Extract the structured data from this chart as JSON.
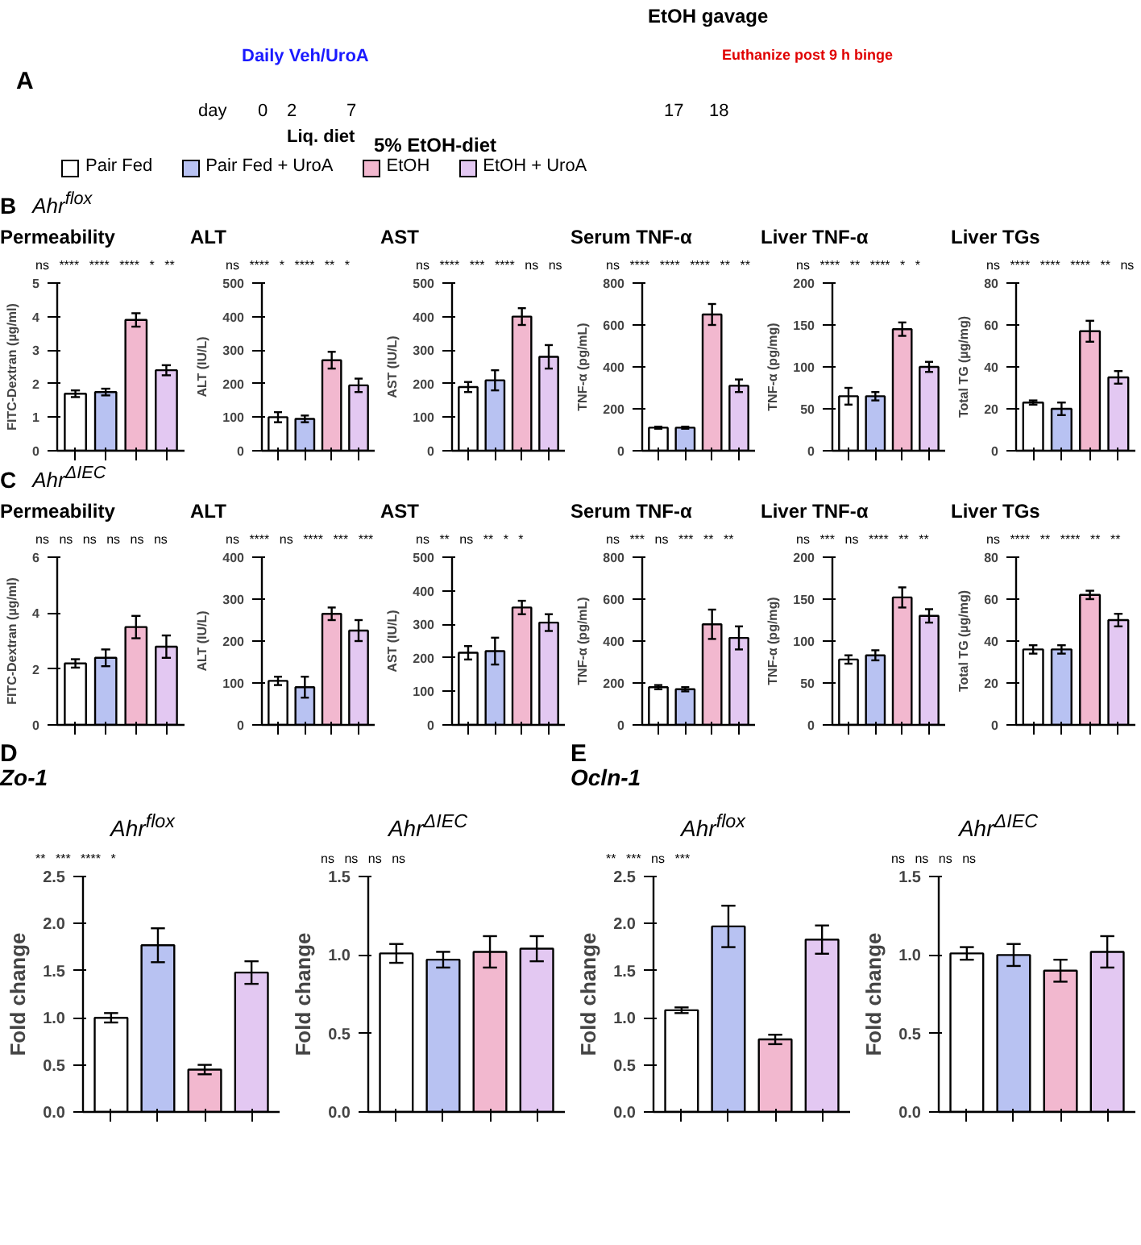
{
  "chart_data": [
    {
      "type": "other",
      "title": "A",
      "annotations": [
        "Daily Veh/UroA",
        "EtOH gavage",
        "Euthanize post 9 h binge",
        "day",
        "0",
        "2",
        "7",
        "17",
        "18",
        "Liq. diet",
        "5% EtOH-diet"
      ]
    },
    {
      "type": "other",
      "categories": [
        "Pair Fed",
        "Pair Fed + UroA",
        "EtOH",
        "EtOH + UroA"
      ],
      "colors": [
        "#ffffff",
        "#b8c2f2",
        "#f2b8cf",
        "#e3c8f2"
      ]
    },
    {
      "type": "other",
      "title": "B",
      "subtitle": "Ahr$^{flox}$"
    },
    {
      "type": "bar",
      "title": "Permeability",
      "ylabel": "FITC-Dextran (µg/ml)",
      "categories": [
        null,
        null,
        null,
        null
      ],
      "values": [
        1.7,
        1.75,
        3.9,
        2.4
      ],
      "errors": [
        0.1,
        0.1,
        0.2,
        0.15
      ],
      "colors": [
        "#ffffff",
        "#b8c2f2",
        "#f2b8cf",
        "#e3c8f2"
      ],
      "ylim": [
        0,
        5
      ],
      "yticks": [
        0,
        1,
        2,
        3,
        4,
        5
      ],
      "tick_labels": "y",
      "grid": false,
      "annotations": [
        "ns",
        "****",
        "****",
        "****",
        "*",
        "**"
      ]
    },
    {
      "type": "bar",
      "title": "ALT",
      "ylabel": "ALT (IU/L)",
      "categories": [
        null,
        null,
        null,
        null
      ],
      "values": [
        100,
        95,
        270,
        195
      ],
      "errors": [
        15,
        10,
        25,
        20
      ],
      "colors": [
        "#ffffff",
        "#b8c2f2",
        "#f2b8cf",
        "#e3c8f2"
      ],
      "ylim": [
        0,
        500
      ],
      "yticks": [
        0,
        100,
        200,
        300,
        400,
        500
      ],
      "tick_labels": "y",
      "grid": false,
      "annotations": [
        "ns",
        "****",
        "*",
        "****",
        "**",
        "*"
      ]
    },
    {
      "type": "bar",
      "title": "AST",
      "ylabel": "AST (IU/L)",
      "categories": [
        null,
        null,
        null,
        null
      ],
      "values": [
        190,
        210,
        400,
        280
      ],
      "errors": [
        15,
        30,
        25,
        35
      ],
      "colors": [
        "#ffffff",
        "#b8c2f2",
        "#f2b8cf",
        "#e3c8f2"
      ],
      "ylim": [
        0,
        500
      ],
      "yticks": [
        0,
        100,
        200,
        300,
        400,
        500
      ],
      "tick_labels": "y",
      "grid": false,
      "annotations": [
        "ns",
        "****",
        "***",
        "****",
        "ns",
        "ns"
      ]
    },
    {
      "type": "bar",
      "title": "Serum TNF-α",
      "ylabel": "TNF-α (pg/mL)",
      "categories": [
        null,
        null,
        null,
        null
      ],
      "values": [
        110,
        110,
        650,
        310
      ],
      "errors": [
        5,
        5,
        50,
        30
      ],
      "colors": [
        "#ffffff",
        "#b8c2f2",
        "#f2b8cf",
        "#e3c8f2"
      ],
      "ylim": [
        0,
        800
      ],
      "yticks": [
        0,
        200,
        400,
        600,
        800
      ],
      "tick_labels": "y",
      "grid": false,
      "annotations": [
        "ns",
        "****",
        "****",
        "****",
        "**",
        "**"
      ]
    },
    {
      "type": "bar",
      "title": "Liver TNF-α",
      "ylabel": "TNF-α (pg/mg)",
      "categories": [
        null,
        null,
        null,
        null
      ],
      "values": [
        65,
        65,
        145,
        100
      ],
      "errors": [
        10,
        5,
        8,
        6
      ],
      "colors": [
        "#ffffff",
        "#b8c2f2",
        "#f2b8cf",
        "#e3c8f2"
      ],
      "ylim": [
        0,
        200
      ],
      "yticks": [
        0,
        50,
        100,
        150,
        200
      ],
      "tick_labels": "y",
      "grid": false,
      "annotations": [
        "ns",
        "****",
        "**",
        "****",
        "*",
        "*"
      ]
    },
    {
      "type": "bar",
      "title": "Liver TGs",
      "ylabel": "Total TG (µg/mg)",
      "categories": [
        null,
        null,
        null,
        null
      ],
      "values": [
        23,
        20,
        57,
        35
      ],
      "errors": [
        1,
        3,
        5,
        3
      ],
      "colors": [
        "#ffffff",
        "#b8c2f2",
        "#f2b8cf",
        "#e3c8f2"
      ],
      "ylim": [
        0,
        80
      ],
      "yticks": [
        0,
        20,
        40,
        60,
        80
      ],
      "tick_labels": "y",
      "grid": false,
      "annotations": [
        "ns",
        "****",
        "****",
        "****",
        "**",
        "ns"
      ]
    },
    {
      "type": "other",
      "title": "C",
      "subtitle": "Ahr$^{ΔIEC}$"
    },
    {
      "type": "bar",
      "title": "Permeability",
      "ylabel": "FITC-Dextran (µg/ml)",
      "categories": [
        null,
        null,
        null,
        null
      ],
      "values": [
        2.2,
        2.4,
        3.5,
        2.8
      ],
      "errors": [
        0.15,
        0.3,
        0.4,
        0.4
      ],
      "colors": [
        "#ffffff",
        "#b8c2f2",
        "#f2b8cf",
        "#e3c8f2"
      ],
      "ylim": [
        0,
        6
      ],
      "yticks": [
        0,
        2,
        4,
        6
      ],
      "tick_labels": "y",
      "grid": false,
      "annotations": [
        "ns",
        "ns",
        "ns",
        "ns",
        "ns",
        "ns"
      ]
    },
    {
      "type": "bar",
      "title": "ALT",
      "ylabel": "ALT (IU/L)",
      "categories": [
        null,
        null,
        null,
        null
      ],
      "values": [
        105,
        90,
        265,
        225
      ],
      "errors": [
        10,
        25,
        15,
        25
      ],
      "colors": [
        "#ffffff",
        "#b8c2f2",
        "#f2b8cf",
        "#e3c8f2"
      ],
      "ylim": [
        0,
        400
      ],
      "yticks": [
        0,
        100,
        200,
        300,
        400
      ],
      "tick_labels": "y",
      "grid": false,
      "annotations": [
        "ns",
        "****",
        "ns",
        "****",
        "***",
        "***"
      ]
    },
    {
      "type": "bar",
      "title": "AST",
      "ylabel": "AST (IU/L)",
      "categories": [
        null,
        null,
        null,
        null
      ],
      "values": [
        215,
        220,
        350,
        305
      ],
      "errors": [
        20,
        40,
        20,
        25
      ],
      "colors": [
        "#ffffff",
        "#b8c2f2",
        "#f2b8cf",
        "#e3c8f2"
      ],
      "ylim": [
        0,
        500
      ],
      "yticks": [
        0,
        100,
        200,
        300,
        400,
        500
      ],
      "tick_labels": "y",
      "grid": false,
      "annotations": [
        "ns",
        "**",
        "ns",
        "**",
        "*",
        "*"
      ]
    },
    {
      "type": "bar",
      "title": "Serum TNF-α",
      "ylabel": "TNF-α (pg/mL)",
      "categories": [
        null,
        null,
        null,
        null
      ],
      "values": [
        180,
        170,
        480,
        415
      ],
      "errors": [
        10,
        10,
        70,
        55
      ],
      "colors": [
        "#ffffff",
        "#b8c2f2",
        "#f2b8cf",
        "#e3c8f2"
      ],
      "ylim": [
        0,
        800
      ],
      "yticks": [
        0,
        200,
        400,
        600,
        800
      ],
      "tick_labels": "y",
      "grid": false,
      "annotations": [
        "ns",
        "***",
        "ns",
        "***",
        "**",
        "**"
      ]
    },
    {
      "type": "bar",
      "title": "Liver TNF-α",
      "ylabel": "TNF-α (pg/mg)",
      "categories": [
        null,
        null,
        null,
        null
      ],
      "values": [
        78,
        83,
        152,
        130
      ],
      "errors": [
        5,
        6,
        12,
        8
      ],
      "colors": [
        "#ffffff",
        "#b8c2f2",
        "#f2b8cf",
        "#e3c8f2"
      ],
      "ylim": [
        0,
        200
      ],
      "yticks": [
        0,
        50,
        100,
        150,
        200
      ],
      "tick_labels": "y",
      "grid": false,
      "annotations": [
        "ns",
        "***",
        "ns",
        "****",
        "**",
        "**"
      ]
    },
    {
      "type": "bar",
      "title": "Liver TGs",
      "ylabel": "Total TG (µg/mg)",
      "categories": [
        null,
        null,
        null,
        null
      ],
      "values": [
        36,
        36,
        62,
        50
      ],
      "errors": [
        2,
        2,
        2,
        3
      ],
      "colors": [
        "#ffffff",
        "#b8c2f2",
        "#f2b8cf",
        "#e3c8f2"
      ],
      "ylim": [
        0,
        80
      ],
      "yticks": [
        0,
        20,
        40,
        60,
        80
      ],
      "tick_labels": "y",
      "grid": false,
      "annotations": [
        "ns",
        "****",
        "**",
        "****",
        "**",
        "**"
      ]
    },
    {
      "type": "other",
      "title": "D",
      "subtitle": "Zo-1"
    },
    {
      "type": "other",
      "title": "E",
      "subtitle": "Ocln-1"
    },
    {
      "type": "bar",
      "title": "Ahr$^{flox}$",
      "ylabel": "Fold change",
      "categories": [
        null,
        null,
        null,
        null
      ],
      "values": [
        1.0,
        1.77,
        0.45,
        1.48
      ],
      "errors": [
        0.05,
        0.18,
        0.05,
        0.12
      ],
      "colors": [
        "#ffffff",
        "#b8c2f2",
        "#f2b8cf",
        "#e3c8f2"
      ],
      "ylim": [
        0,
        2.5
      ],
      "yticks": [
        {
          "value": 0,
          "label": "0.0"
        },
        {
          "value": 0.5,
          "label": "0.5"
        },
        {
          "value": 1,
          "label": "1.0"
        },
        {
          "value": 1.5,
          "label": "1.5"
        },
        {
          "value": 2,
          "label": "2.0"
        },
        {
          "value": 2.5,
          "label": "2.5"
        }
      ],
      "tick_labels": "y",
      "grid": false,
      "annotations": [
        "**",
        "***",
        "****",
        "*"
      ]
    },
    {
      "type": "bar",
      "title": "Ahr$^{ΔIEC}$",
      "ylabel": "Fold change",
      "categories": [
        null,
        null,
        null,
        null
      ],
      "values": [
        1.01,
        0.97,
        1.02,
        1.04
      ],
      "errors": [
        0.06,
        0.05,
        0.1,
        0.08
      ],
      "colors": [
        "#ffffff",
        "#b8c2f2",
        "#f2b8cf",
        "#e3c8f2"
      ],
      "ylim": [
        0,
        1.5
      ],
      "yticks": [
        {
          "value": 0,
          "label": "0.0"
        },
        {
          "value": 0.5,
          "label": "0.5"
        },
        {
          "value": 1,
          "label": "1.0"
        },
        {
          "value": 1.5,
          "label": "1.5"
        }
      ],
      "tick_labels": "y",
      "grid": false,
      "annotations": [
        "ns",
        "ns",
        "ns",
        "ns"
      ]
    },
    {
      "type": "bar",
      "title": "Ahr$^{flox}$",
      "ylabel": "Fold change",
      "categories": [
        null,
        null,
        null,
        null
      ],
      "values": [
        1.08,
        1.97,
        0.77,
        1.83
      ],
      "errors": [
        0.03,
        0.22,
        0.05,
        0.15
      ],
      "colors": [
        "#ffffff",
        "#b8c2f2",
        "#f2b8cf",
        "#e3c8f2"
      ],
      "ylim": [
        0,
        2.5
      ],
      "yticks": [
        {
          "value": 0,
          "label": "0.0"
        },
        {
          "value": 0.5,
          "label": "0.5"
        },
        {
          "value": 1,
          "label": "1.0"
        },
        {
          "value": 1.5,
          "label": "1.5"
        },
        {
          "value": 2,
          "label": "2.0"
        },
        {
          "value": 2.5,
          "label": "2.5"
        }
      ],
      "tick_labels": "y",
      "grid": false,
      "annotations": [
        "**",
        "***",
        "ns",
        "***"
      ]
    },
    {
      "type": "bar",
      "title": "Ahr$^{ΔIEC}$",
      "ylabel": "Fold change",
      "categories": [
        null,
        null,
        null,
        null
      ],
      "values": [
        1.01,
        1.0,
        0.9,
        1.02
      ],
      "errors": [
        0.04,
        0.07,
        0.07,
        0.1
      ],
      "colors": [
        "#ffffff",
        "#b8c2f2",
        "#f2b8cf",
        "#e3c8f2"
      ],
      "ylim": [
        0,
        1.5
      ],
      "yticks": [
        {
          "value": 0,
          "label": "0.0"
        },
        {
          "value": 0.5,
          "label": "0.5"
        },
        {
          "value": 1,
          "label": "1.0"
        },
        {
          "value": 1.5,
          "label": "1.5"
        }
      ],
      "tick_labels": "y",
      "grid": false,
      "annotations": [
        "ns",
        "ns",
        "ns",
        "ns"
      ]
    }
  ]
}
